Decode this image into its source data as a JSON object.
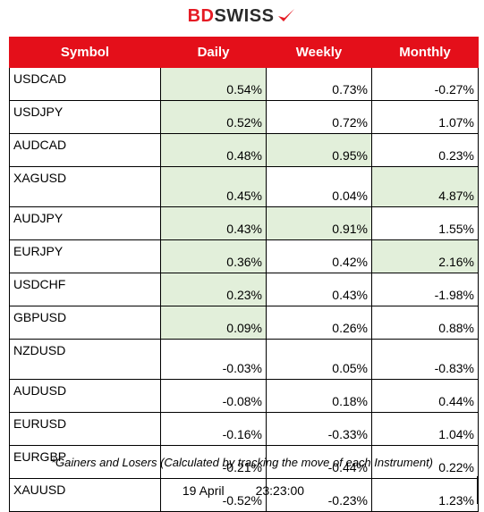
{
  "brand": {
    "part1": "BD",
    "part2": "SWISS"
  },
  "columns": [
    "Symbol",
    "Daily",
    "Weekly",
    "Monthly"
  ],
  "rows": [
    {
      "symbol": "USDCAD",
      "daily": "0.54%",
      "weekly": "0.73%",
      "monthly": "-0.27%",
      "hi": [
        true,
        false,
        false
      ]
    },
    {
      "symbol": "USDJPY",
      "daily": "0.52%",
      "weekly": "0.72%",
      "monthly": "1.07%",
      "hi": [
        true,
        false,
        false
      ]
    },
    {
      "symbol": "AUDCAD",
      "daily": "0.48%",
      "weekly": "0.95%",
      "monthly": "0.23%",
      "hi": [
        true,
        true,
        false
      ]
    },
    {
      "symbol": "XAGUSD",
      "daily": "0.45%",
      "weekly": "0.04%",
      "monthly": "4.87%",
      "hi": [
        true,
        false,
        true
      ]
    },
    {
      "symbol": "AUDJPY",
      "daily": "0.43%",
      "weekly": "0.91%",
      "monthly": "1.55%",
      "hi": [
        true,
        true,
        false
      ]
    },
    {
      "symbol": "EURJPY",
      "daily": "0.36%",
      "weekly": "0.42%",
      "monthly": "2.16%",
      "hi": [
        true,
        false,
        true
      ]
    },
    {
      "symbol": "USDCHF",
      "daily": "0.23%",
      "weekly": "0.43%",
      "monthly": "-1.98%",
      "hi": [
        true,
        false,
        false
      ]
    },
    {
      "symbol": "GBPUSD",
      "daily": "0.09%",
      "weekly": "0.26%",
      "monthly": "0.88%",
      "hi": [
        true,
        false,
        false
      ]
    },
    {
      "symbol": "NZDUSD",
      "daily": "-0.03%",
      "weekly": "0.05%",
      "monthly": "-0.83%",
      "hi": [
        false,
        false,
        false
      ]
    },
    {
      "symbol": "AUDUSD",
      "daily": "-0.08%",
      "weekly": "0.18%",
      "monthly": "0.44%",
      "hi": [
        false,
        false,
        false
      ]
    },
    {
      "symbol": "EURUSD",
      "daily": "-0.16%",
      "weekly": "-0.33%",
      "monthly": "1.04%",
      "hi": [
        false,
        false,
        false
      ]
    },
    {
      "symbol": "EURGBP",
      "daily": "-0.21%",
      "weekly": "-0.44%",
      "monthly": "0.22%",
      "hi": [
        false,
        false,
        false
      ]
    },
    {
      "symbol": "XAUUSD",
      "daily": "-0.52%",
      "weekly": "-0.23%",
      "monthly": "1.23%",
      "hi": [
        false,
        false,
        false
      ]
    }
  ],
  "note": "*Gainers and Losers (Calculated by tracking the move of each Instrument)",
  "date": "19 April",
  "time": "23:23:00",
  "colors": {
    "header": "#e40f1a",
    "highlight": "#e2efda",
    "brand_red": "#e51b24",
    "brand_dark": "#2b2b2b"
  }
}
